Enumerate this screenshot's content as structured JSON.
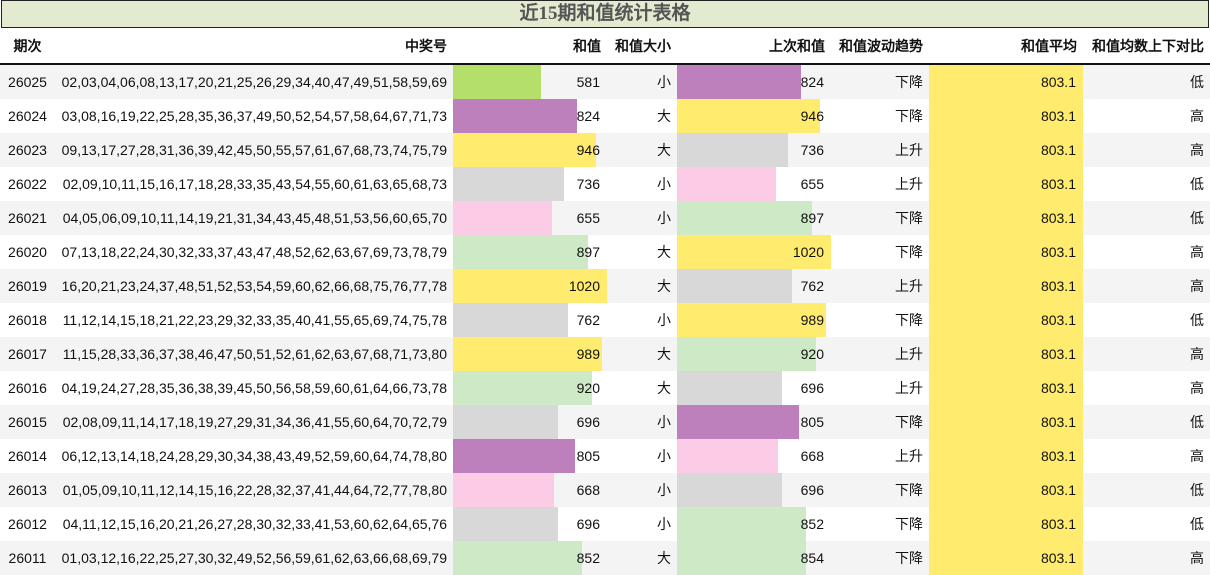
{
  "title": "近15期和值统计表格",
  "headers": [
    "期次",
    "中奖号",
    "和值",
    "和值大小",
    "上次和值",
    "和值波动趋势",
    "和值平均",
    "和值均数上下对比"
  ],
  "colors": {
    "lime": "#b3df6a",
    "purple": "#bd80bd",
    "yellow": "#ffeb6e",
    "gray": "#d8d8d8",
    "pink": "#fccce6",
    "lightgreen": "#cde9c5"
  },
  "rows": [
    {
      "issue": "26025",
      "numbers": "02,03,04,06,08,13,17,20,21,25,26,29,34,40,47,49,51,58,59,69",
      "sum": 581,
      "sum_color": "#b3df6a",
      "size": "小",
      "prev": 824,
      "prev_color": "#bd80bd",
      "trend": "下降",
      "avg": "803.1",
      "cmp": "低"
    },
    {
      "issue": "26024",
      "numbers": "03,08,16,19,22,25,28,35,36,37,49,50,52,54,57,58,64,67,71,73",
      "sum": 824,
      "sum_color": "#bd80bd",
      "size": "大",
      "prev": 946,
      "prev_color": "#ffeb6e",
      "trend": "下降",
      "avg": "803.1",
      "cmp": "高"
    },
    {
      "issue": "26023",
      "numbers": "09,13,17,27,28,31,36,39,42,45,50,55,57,61,67,68,73,74,75,79",
      "sum": 946,
      "sum_color": "#ffeb6e",
      "size": "大",
      "prev": 736,
      "prev_color": "#d8d8d8",
      "trend": "上升",
      "avg": "803.1",
      "cmp": "高"
    },
    {
      "issue": "26022",
      "numbers": "02,09,10,11,15,16,17,18,28,33,35,43,54,55,60,61,63,65,68,73",
      "sum": 736,
      "sum_color": "#d8d8d8",
      "size": "小",
      "prev": 655,
      "prev_color": "#fccce6",
      "trend": "上升",
      "avg": "803.1",
      "cmp": "低"
    },
    {
      "issue": "26021",
      "numbers": "04,05,06,09,10,11,14,19,21,31,34,43,45,48,51,53,56,60,65,70",
      "sum": 655,
      "sum_color": "#fccce6",
      "size": "小",
      "prev": 897,
      "prev_color": "#cde9c5",
      "trend": "下降",
      "avg": "803.1",
      "cmp": "低"
    },
    {
      "issue": "26020",
      "numbers": "07,13,18,22,24,30,32,33,37,43,47,48,52,62,63,67,69,73,78,79",
      "sum": 897,
      "sum_color": "#cde9c5",
      "size": "大",
      "prev": 1020,
      "prev_color": "#ffeb6e",
      "trend": "下降",
      "avg": "803.1",
      "cmp": "高"
    },
    {
      "issue": "26019",
      "numbers": "16,20,21,23,24,37,48,51,52,53,54,59,60,62,66,68,75,76,77,78",
      "sum": 1020,
      "sum_color": "#ffeb6e",
      "size": "大",
      "prev": 762,
      "prev_color": "#d8d8d8",
      "trend": "上升",
      "avg": "803.1",
      "cmp": "高"
    },
    {
      "issue": "26018",
      "numbers": "11,12,14,15,18,21,22,23,29,32,33,35,40,41,55,65,69,74,75,78",
      "sum": 762,
      "sum_color": "#d8d8d8",
      "size": "小",
      "prev": 989,
      "prev_color": "#ffeb6e",
      "trend": "下降",
      "avg": "803.1",
      "cmp": "低"
    },
    {
      "issue": "26017",
      "numbers": "11,15,28,33,36,37,38,46,47,50,51,52,61,62,63,67,68,71,73,80",
      "sum": 989,
      "sum_color": "#ffeb6e",
      "size": "大",
      "prev": 920,
      "prev_color": "#cde9c5",
      "trend": "上升",
      "avg": "803.1",
      "cmp": "高"
    },
    {
      "issue": "26016",
      "numbers": "04,19,24,27,28,35,36,38,39,45,50,56,58,59,60,61,64,66,73,78",
      "sum": 920,
      "sum_color": "#cde9c5",
      "size": "大",
      "prev": 696,
      "prev_color": "#d8d8d8",
      "trend": "上升",
      "avg": "803.1",
      "cmp": "高"
    },
    {
      "issue": "26015",
      "numbers": "02,08,09,11,14,17,18,19,27,29,31,34,36,41,55,60,64,70,72,79",
      "sum": 696,
      "sum_color": "#d8d8d8",
      "size": "小",
      "prev": 805,
      "prev_color": "#bd80bd",
      "trend": "下降",
      "avg": "803.1",
      "cmp": "低"
    },
    {
      "issue": "26014",
      "numbers": "06,12,13,14,18,24,28,29,30,34,38,43,49,52,59,60,64,74,78,80",
      "sum": 805,
      "sum_color": "#bd80bd",
      "size": "小",
      "prev": 668,
      "prev_color": "#fccce6",
      "trend": "上升",
      "avg": "803.1",
      "cmp": "高"
    },
    {
      "issue": "26013",
      "numbers": "01,05,09,10,11,12,14,15,16,22,28,32,37,41,44,64,72,77,78,80",
      "sum": 668,
      "sum_color": "#fccce6",
      "size": "小",
      "prev": 696,
      "prev_color": "#d8d8d8",
      "trend": "下降",
      "avg": "803.1",
      "cmp": "低"
    },
    {
      "issue": "26012",
      "numbers": "04,11,12,15,16,20,21,26,27,28,30,32,33,41,53,60,62,64,65,76",
      "sum": 696,
      "sum_color": "#d8d8d8",
      "size": "小",
      "prev": 852,
      "prev_color": "#cde9c5",
      "trend": "下降",
      "avg": "803.1",
      "cmp": "低"
    },
    {
      "issue": "26011",
      "numbers": "01,03,12,16,22,25,27,30,32,49,52,56,59,61,62,63,66,68,69,79",
      "sum": 852,
      "sum_color": "#cde9c5",
      "size": "大",
      "prev": 854,
      "prev_color": "#cde9c5",
      "trend": "下降",
      "avg": "803.1",
      "cmp": "高"
    }
  ]
}
